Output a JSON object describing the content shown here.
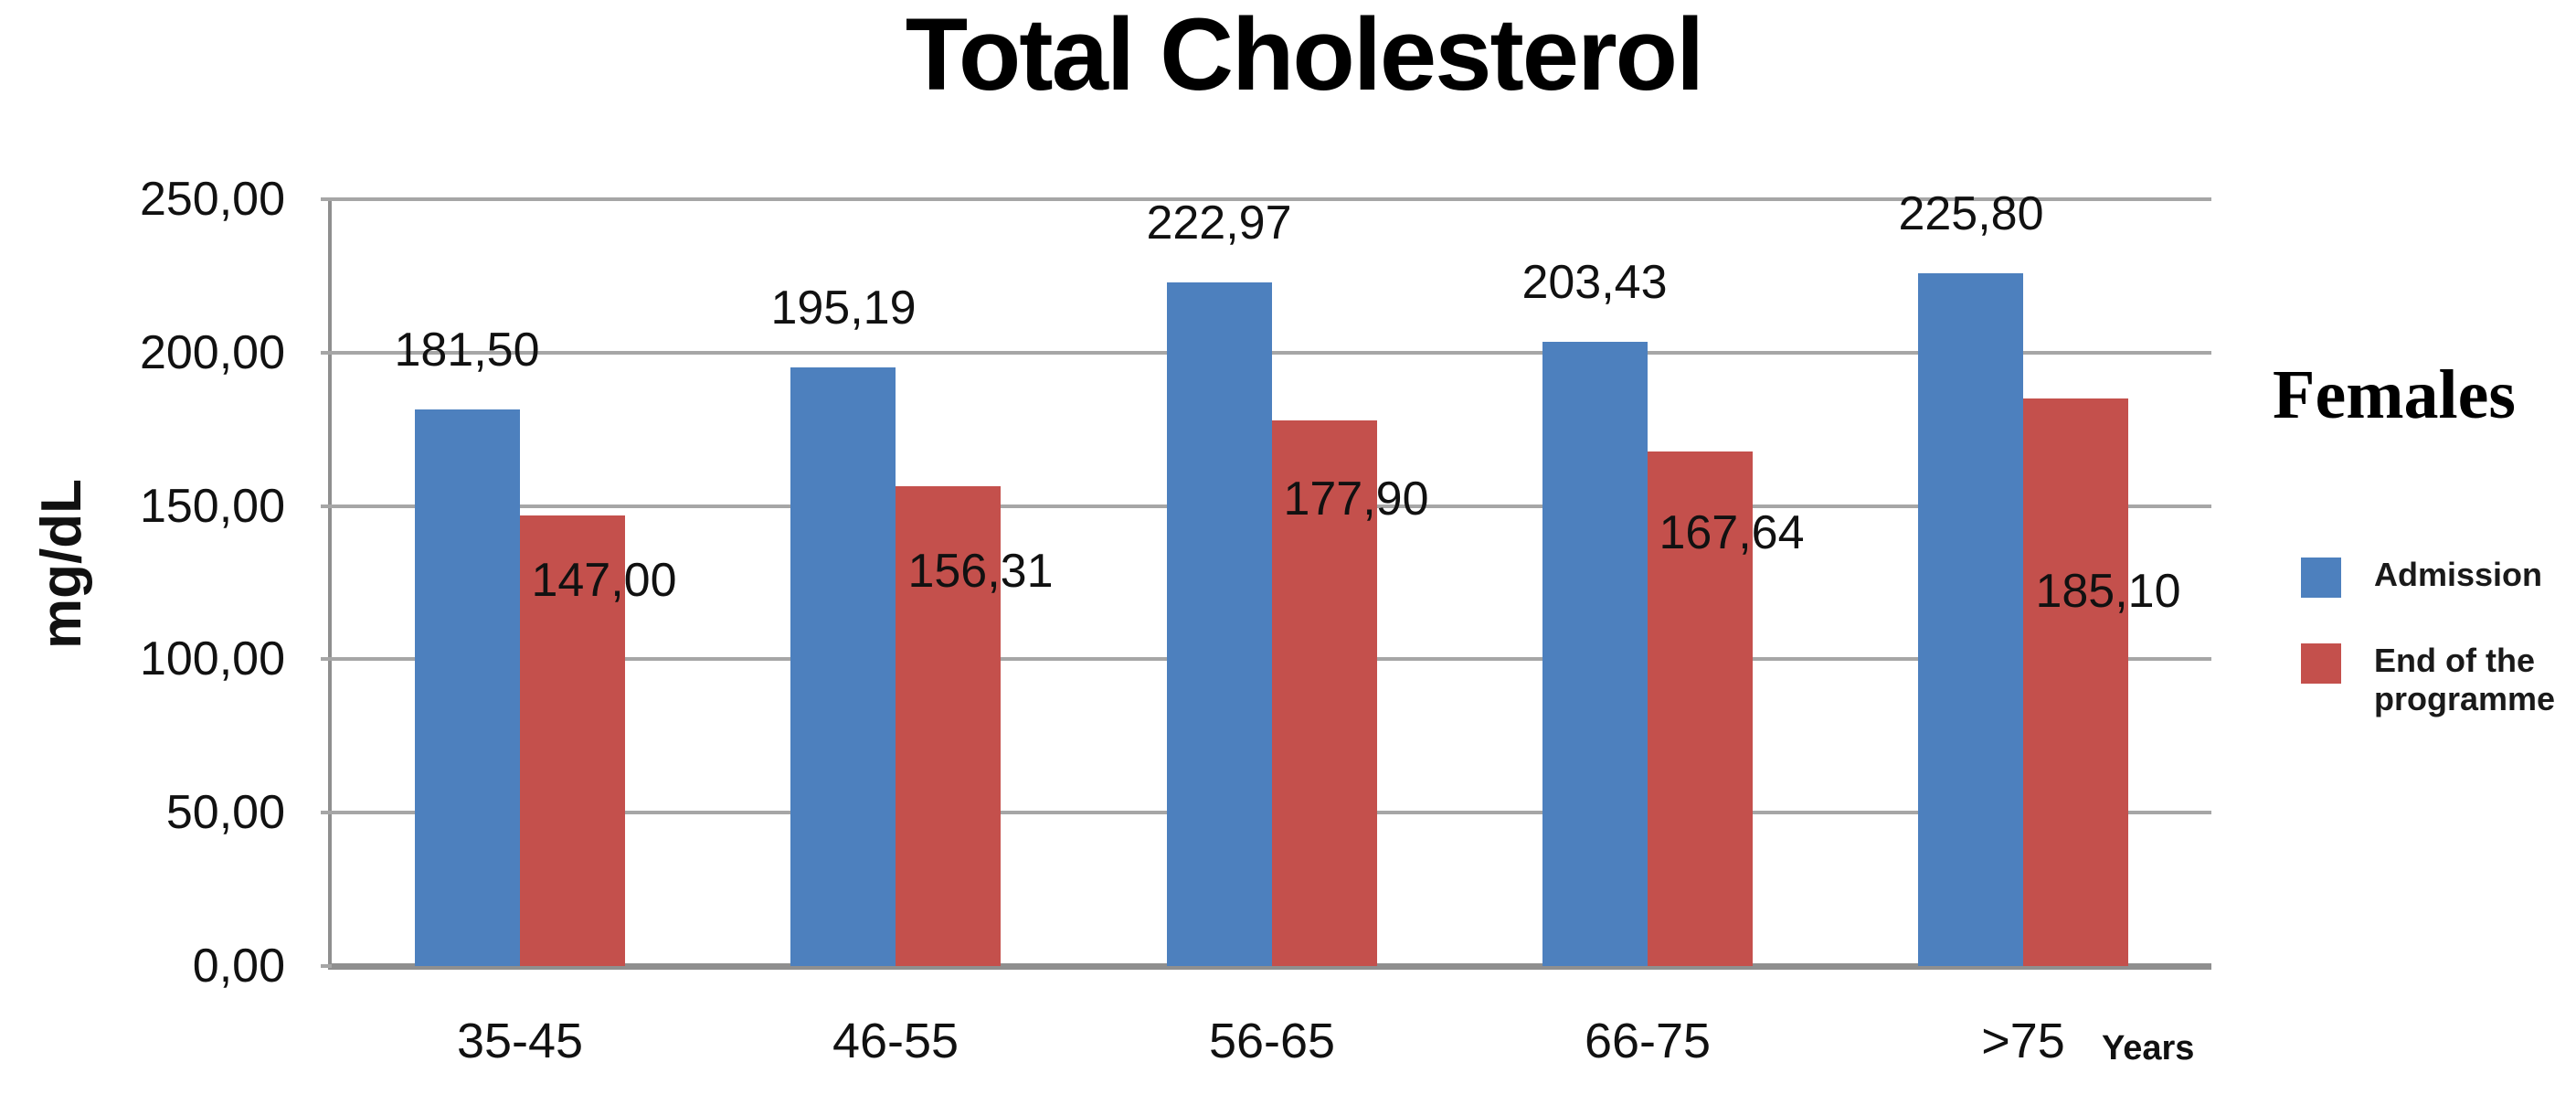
{
  "chart_data": {
    "type": "bar",
    "title": "Total Cholesterol",
    "ylabel": "mg/dL",
    "xlabel": "Years",
    "categories": [
      "35-45",
      "46-55",
      "56-65",
      "66-75",
      ">75"
    ],
    "series": [
      {
        "name": "Admission",
        "color": "#4d80be",
        "values": [
          181.5,
          195.19,
          222.97,
          203.43,
          225.8
        ],
        "labels": [
          "181,50",
          "195,19",
          "222,97",
          "203,43",
          "225,80"
        ]
      },
      {
        "name": "End of the programme",
        "color": "#c4504c",
        "values": [
          147.0,
          156.31,
          177.9,
          167.64,
          185.1
        ],
        "labels": [
          "147,00",
          "156,31",
          "177,90",
          "167,64",
          "185,10"
        ]
      }
    ],
    "ylim": [
      0,
      250
    ],
    "ytick_step": 50,
    "yticks": [
      "250,00",
      "200,00",
      "150,00",
      "100,00",
      "50,00",
      "0,00"
    ],
    "grid": "horizontal",
    "legend_position": "right",
    "legend": {
      "title": "Females",
      "items": [
        {
          "label": "Admission",
          "color": "#4d80be"
        },
        {
          "label": "End of the programme",
          "color": "#c4504c"
        }
      ]
    },
    "layout_hints": {
      "gridline_color": "#a6a6a6",
      "axis_color": "#8f8f8f",
      "admission_label_top_offset": [
        -96,
        -96,
        -96,
        -96,
        -96
      ],
      "end_label_top_offset": [
        40,
        62,
        55,
        58,
        180
      ],
      "end_label_x_shift": 35
    }
  }
}
